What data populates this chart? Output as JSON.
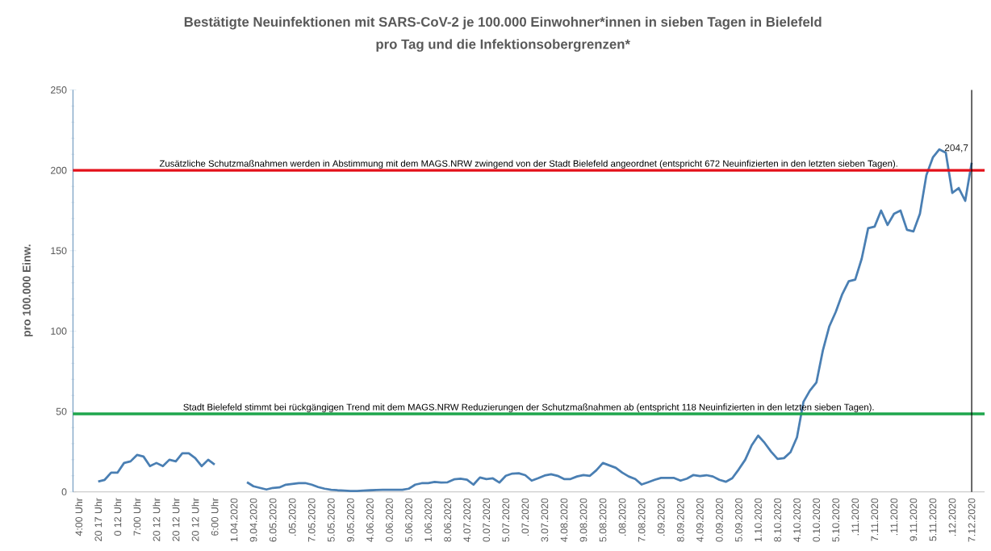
{
  "chart_data": {
    "type": "line",
    "title": "Bestätigte Neuinfektionen mit SARS-CoV-2 je 100.000 Einwohner*innen in sieben Tagen in Bielefeld",
    "subtitle": "pro Tag und die Infektionsobergrenzen*",
    "ylabel": "pro 100.000 Einw.",
    "categories": [
      "4:00 Uhr",
      null,
      null,
      "20 17 Uhr",
      null,
      null,
      "0  12 Uhr",
      null,
      null,
      "7:00 Uhr",
      null,
      null,
      "20 12 Uhr",
      null,
      null,
      "20 12 Uhr",
      null,
      null,
      "20 12 Uhr",
      null,
      null,
      "6:00 Uhr",
      null,
      null,
      "1.04.2020",
      null,
      null,
      "9.04.2020",
      null,
      null,
      "6.05.2020",
      null,
      null,
      ".05.2020",
      null,
      null,
      "7.05.2020",
      null,
      null,
      "5.05.2020",
      null,
      null,
      "9.05.2020",
      null,
      null,
      "4.06.2020",
      null,
      null,
      "0.06.2020",
      null,
      null,
      "5.06.2020",
      null,
      null,
      "1.06.2020",
      null,
      null,
      "8.06.2020",
      null,
      null,
      "4.07.2020",
      null,
      null,
      "0.07.2020",
      null,
      null,
      "5.07.2020",
      null,
      null,
      ".07.2020",
      null,
      null,
      "3.07.2020",
      null,
      null,
      "4.08.2020",
      null,
      null,
      "9.08.2020",
      null,
      null,
      "5.08.2020",
      null,
      null,
      ".08.2020",
      null,
      null,
      "7.08.2020",
      null,
      null,
      ".09.2020",
      null,
      null,
      "8.09.2020",
      null,
      null,
      "4.09.2020",
      null,
      null,
      "0.09.2020",
      null,
      null,
      "5.09.2020",
      null,
      null,
      "1.10.2020",
      null,
      null,
      "8.10.2020",
      null,
      null,
      "4.10.2020",
      null,
      null,
      "0.10.2020",
      null,
      null,
      "5.10.2020",
      null,
      null,
      ".11.2020",
      null,
      null,
      "7.11.2020",
      null,
      null,
      ".11.2020",
      null,
      null,
      "9.11.2020",
      null,
      null,
      "5.11.2020",
      null,
      null,
      ".12.2020",
      null,
      null,
      "7.12.2020"
    ],
    "values": [
      null,
      null,
      null,
      6.5,
      7.5,
      12,
      12,
      18,
      19,
      23,
      22,
      16,
      18,
      16,
      20,
      19,
      24,
      24,
      21,
      16,
      20,
      17,
      null,
      null,
      null,
      null,
      6,
      3.5,
      2.5,
      1.5,
      2.5,
      2.8,
      4.5,
      5,
      5.5,
      5.5,
      4.5,
      3,
      2,
      1.3,
      1,
      0.8,
      0.5,
      0.5,
      0.8,
      1,
      1.2,
      1.3,
      1.3,
      1.3,
      1.3,
      2,
      4.5,
      5.4,
      5.4,
      6.2,
      5.8,
      6,
      7.8,
      8.2,
      7.6,
      4.5,
      9,
      8,
      8.4,
      5.8,
      10,
      11.4,
      11.6,
      10.4,
      7,
      8.5,
      10.2,
      11,
      10,
      8,
      8,
      9.6,
      10.5,
      10,
      13.5,
      18,
      16.5,
      15,
      12,
      9.6,
      8,
      4.6,
      6,
      7.5,
      8.7,
      8.7,
      8.7,
      7,
      8.3,
      10.5,
      9.8,
      10.4,
      9.6,
      7.5,
      6.3,
      8.5,
      14,
      20,
      29,
      35,
      30.5,
      25,
      20.5,
      21,
      24.7,
      34,
      56,
      63,
      68,
      88,
      103,
      112,
      123,
      131,
      132,
      145,
      164,
      165,
      175,
      166,
      173,
      175,
      163,
      162,
      173,
      197,
      208,
      213,
      211,
      186,
      189,
      181,
      204.7
    ],
    "value_labels": [
      null,
      null,
      null,
      null,
      null,
      null,
      null,
      null,
      null,
      null,
      null,
      null,
      null,
      null,
      null,
      null,
      null,
      null,
      null,
      null,
      null,
      null,
      null,
      null,
      null,
      null,
      null,
      null,
      null,
      null,
      null,
      null,
      null,
      null,
      null,
      null,
      null,
      null,
      null,
      null,
      null,
      null,
      null,
      null,
      null,
      null,
      null,
      null,
      null,
      null,
      null,
      null,
      null,
      null,
      null,
      null,
      null,
      null,
      null,
      null,
      null,
      null,
      null,
      null,
      null,
      null,
      null,
      null,
      null,
      null,
      null,
      null,
      null,
      null,
      null,
      null,
      null,
      null,
      null,
      null,
      null,
      null,
      null,
      null,
      null,
      null,
      null,
      null,
      null,
      null,
      null,
      null,
      null,
      null,
      null,
      null,
      null,
      null,
      null,
      null,
      null,
      null,
      null,
      null,
      null,
      null,
      null,
      null,
      null,
      null,
      null,
      null,
      null,
      null,
      null,
      null,
      null,
      null,
      null,
      null,
      null,
      null,
      null,
      null,
      null,
      null,
      null,
      null,
      null,
      null,
      null,
      null,
      null,
      null,
      null,
      null,
      null,
      null,
      "204,7"
    ],
    "color": "#4a7fb3",
    "marker": "none",
    "line_style": "solid",
    "ylim": [
      0,
      250
    ],
    "yticks": [
      0,
      50,
      100,
      150,
      200,
      250
    ],
    "grid": false,
    "ref_lines": [
      {
        "axis": "y",
        "value": 200,
        "color": "#e3101a",
        "label": "Zusätzliche Schutzmaßnahmen werden in Abstimmung mit dem MAGS.NRW zwingend von der Stadt Bielefeld  angeordnet (entspricht 672  Neuinfizierten in den  letzten sieben Tagen)."
      },
      {
        "axis": "y",
        "value": 48.5,
        "color": "#1ea64c",
        "label": "Stadt Bielefeld  stimmt bei rückgängigen Trend mit dem MAGS.NRW Reduzierungen der Schutzmaßnahmen ab (entspricht 118 Neuinfizierten in den  letzten sieben Tagen)."
      },
      {
        "axis": "x",
        "value": "7.12.2020",
        "color": "#000000"
      }
    ]
  }
}
